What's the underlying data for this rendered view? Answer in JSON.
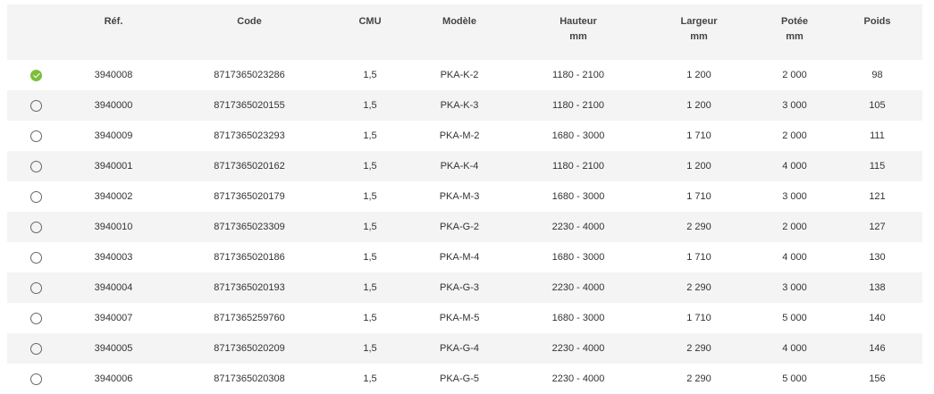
{
  "headers": [
    {
      "line1": "",
      "line2": ""
    },
    {
      "line1": "Réf.",
      "line2": ""
    },
    {
      "line1": "Code",
      "line2": ""
    },
    {
      "line1": "CMU",
      "line2": ""
    },
    {
      "line1": "Modèle",
      "line2": ""
    },
    {
      "line1": "Hauteur",
      "line2": "mm"
    },
    {
      "line1": "Largeur",
      "line2": "mm"
    },
    {
      "line1": "Potée",
      "line2": "mm"
    },
    {
      "line1": "Poids",
      "line2": ""
    }
  ],
  "accent_color": "#7cbf3a",
  "rows": [
    {
      "selected": true,
      "ref": "3940008",
      "code": "8717365023286",
      "cmu": "1,5",
      "modele": "PKA-K-2",
      "hauteur": "1180 - 2100",
      "largeur": "1 200",
      "potee": "2 000",
      "poids": "98"
    },
    {
      "selected": false,
      "ref": "3940000",
      "code": "8717365020155",
      "cmu": "1,5",
      "modele": "PKA-K-3",
      "hauteur": "1180 - 2100",
      "largeur": "1 200",
      "potee": "3 000",
      "poids": "105"
    },
    {
      "selected": false,
      "ref": "3940009",
      "code": "8717365023293",
      "cmu": "1,5",
      "modele": "PKA-M-2",
      "hauteur": "1680 - 3000",
      "largeur": "1 710",
      "potee": "2 000",
      "poids": "111"
    },
    {
      "selected": false,
      "ref": "3940001",
      "code": "8717365020162",
      "cmu": "1,5",
      "modele": "PKA-K-4",
      "hauteur": "1180 - 2100",
      "largeur": "1 200",
      "potee": "4 000",
      "poids": "115"
    },
    {
      "selected": false,
      "ref": "3940002",
      "code": "8717365020179",
      "cmu": "1,5",
      "modele": "PKA-M-3",
      "hauteur": "1680 - 3000",
      "largeur": "1 710",
      "potee": "3 000",
      "poids": "121"
    },
    {
      "selected": false,
      "ref": "3940010",
      "code": "8717365023309",
      "cmu": "1,5",
      "modele": "PKA-G-2",
      "hauteur": "2230 - 4000",
      "largeur": "2 290",
      "potee": "2 000",
      "poids": "127"
    },
    {
      "selected": false,
      "ref": "3940003",
      "code": "8717365020186",
      "cmu": "1,5",
      "modele": "PKA-M-4",
      "hauteur": "1680 - 3000",
      "largeur": "1 710",
      "potee": "4 000",
      "poids": "130"
    },
    {
      "selected": false,
      "ref": "3940004",
      "code": "8717365020193",
      "cmu": "1,5",
      "modele": "PKA-G-3",
      "hauteur": "2230 - 4000",
      "largeur": "2 290",
      "potee": "3 000",
      "poids": "138"
    },
    {
      "selected": false,
      "ref": "3940007",
      "code": "8717365259760",
      "cmu": "1,5",
      "modele": "PKA-M-5",
      "hauteur": "1680 - 3000",
      "largeur": "1 710",
      "potee": "5 000",
      "poids": "140"
    },
    {
      "selected": false,
      "ref": "3940005",
      "code": "8717365020209",
      "cmu": "1,5",
      "modele": "PKA-G-4",
      "hauteur": "2230 - 4000",
      "largeur": "2 290",
      "potee": "4 000",
      "poids": "146"
    },
    {
      "selected": false,
      "ref": "3940006",
      "code": "8717365020308",
      "cmu": "1,5",
      "modele": "PKA-G-5",
      "hauteur": "2230 - 4000",
      "largeur": "2 290",
      "potee": "5 000",
      "poids": "156"
    }
  ]
}
